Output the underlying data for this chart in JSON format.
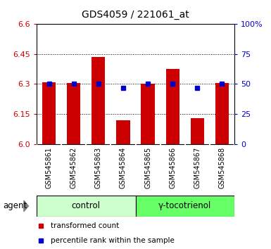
{
  "title": "GDS4059 / 221061_at",
  "samples": [
    "GSM545861",
    "GSM545862",
    "GSM545863",
    "GSM545864",
    "GSM545865",
    "GSM545866",
    "GSM545867",
    "GSM545868"
  ],
  "bar_values": [
    6.31,
    6.305,
    6.435,
    6.12,
    6.3,
    6.375,
    6.13,
    6.305
  ],
  "percentile_values": [
    50,
    50,
    50,
    47,
    50,
    50,
    47,
    50
  ],
  "ylim": [
    6.0,
    6.6
  ],
  "y_ticks": [
    6.0,
    6.15,
    6.3,
    6.45,
    6.6
  ],
  "y_right_ticks": [
    0,
    25,
    50,
    75,
    100
  ],
  "bar_color": "#cc0000",
  "dot_color": "#0000cc",
  "bar_width": 0.55,
  "groups": [
    {
      "label": "control",
      "indices": [
        0,
        1,
        2,
        3
      ],
      "color": "#ccffcc"
    },
    {
      "label": "γ-tocotrienol",
      "indices": [
        4,
        5,
        6,
        7
      ],
      "color": "#66ff66"
    }
  ],
  "agent_label": "agent",
  "legend_bar_label": "transformed count",
  "legend_dot_label": "percentile rank within the sample",
  "left_tick_color": "#cc0000",
  "right_tick_color": "#0000cc",
  "label_area_color": "#c8c8c8",
  "label_area_border": "#000000",
  "group_border_color": "#000000"
}
